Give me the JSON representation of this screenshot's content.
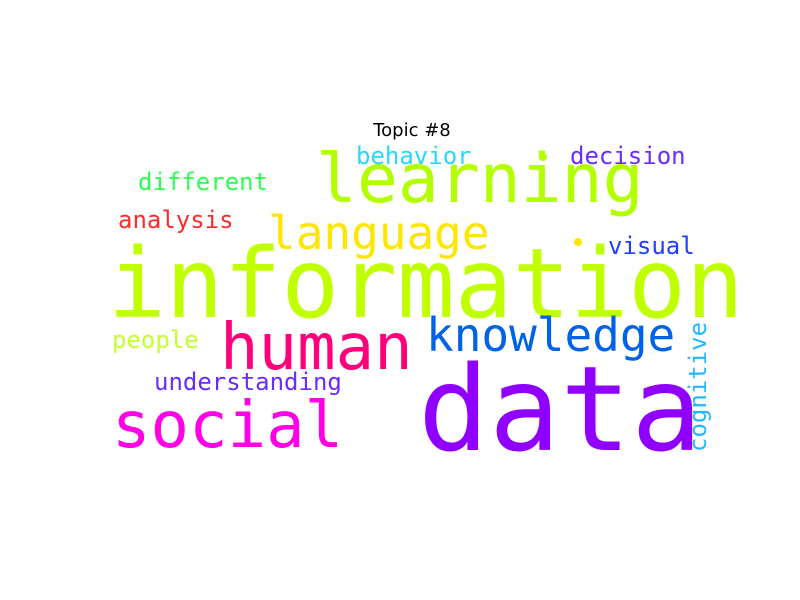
{
  "title": "Topic #8",
  "words": [
    {
      "text": "information",
      "color": "#bfff00"
    },
    {
      "text": "data",
      "color": "#8f00ff"
    },
    {
      "text": "learning",
      "color": "#b2ff00"
    },
    {
      "text": "human",
      "color": "#ff007a"
    },
    {
      "text": "social",
      "color": "#ff00e6"
    },
    {
      "text": "knowledge",
      "color": "#0062e6"
    },
    {
      "text": "language",
      "color": "#ffe600"
    },
    {
      "text": "understanding",
      "color": "#6a2bff"
    },
    {
      "text": "analysis",
      "color": "#ff2a2a"
    },
    {
      "text": "different",
      "color": "#2bff4f"
    },
    {
      "text": "behavior",
      "color": "#26d8ff"
    },
    {
      "text": "decision",
      "color": "#6a2bff"
    },
    {
      "text": "visual",
      "color": "#1f3dff"
    },
    {
      "text": "people",
      "color": "#c4ff2b"
    },
    {
      "text": "cognitive",
      "color": "#24b7ff"
    }
  ],
  "dots": [
    {
      "color": "#b2ff00"
    },
    {
      "color": "#ffe600"
    }
  ]
}
